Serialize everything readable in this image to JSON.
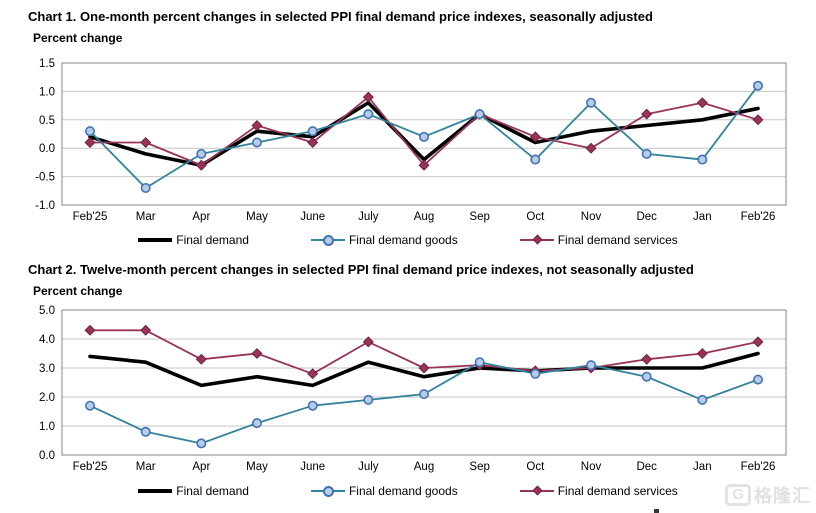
{
  "colors": {
    "final_demand_line": "#000000",
    "goods_line": "#31849B",
    "goods_marker_fill": "#B5CDE9",
    "goods_marker_edge": "#4472B0",
    "services_line": "#993357",
    "services_marker_edge": "#6E2340",
    "gridline": "#C6C6C6",
    "plot_frame": "#9A9A9A",
    "axis_text": "#000000"
  },
  "watermark": {
    "logo": "G",
    "brand": "格隆汇"
  },
  "chart_data": [
    {
      "type": "line",
      "title": "Chart 1. One-month percent changes in selected PPI final demand price indexes, seasonally adjusted",
      "ylabel": "Percent change",
      "categories": [
        "Feb'25",
        "Mar",
        "Apr",
        "May",
        "June",
        "July",
        "Aug",
        "Sep",
        "Oct",
        "Nov",
        "Dec",
        "Jan",
        "Feb'26"
      ],
      "series": [
        {
          "name": "Final demand",
          "style": "final-demand",
          "values": [
            0.2,
            -0.1,
            -0.3,
            0.3,
            0.2,
            0.8,
            -0.2,
            0.6,
            0.1,
            0.3,
            0.4,
            0.5,
            0.7
          ]
        },
        {
          "name": "Final demand goods",
          "style": "goods",
          "values": [
            0.3,
            -0.7,
            -0.1,
            0.1,
            0.3,
            0.6,
            0.2,
            0.6,
            -0.2,
            0.8,
            -0.1,
            -0.2,
            1.1
          ]
        },
        {
          "name": "Final demand services",
          "style": "services",
          "values": [
            0.1,
            0.1,
            -0.3,
            0.4,
            0.1,
            0.9,
            -0.3,
            0.6,
            0.2,
            0.0,
            0.6,
            0.8,
            0.5
          ]
        }
      ],
      "ylim": [
        -1.0,
        1.5
      ],
      "ytick_step": 0.5,
      "ytick_labels": [
        "1.5",
        "1.0",
        "0.5",
        "0.0",
        "-0.5",
        "-1.0"
      ],
      "grid": true,
      "legend_position": "bottom"
    },
    {
      "type": "line",
      "title": "Chart 2. Twelve-month percent changes in selected PPI final demand price indexes, not seasonally adjusted",
      "ylabel": "Percent change",
      "categories": [
        "Feb'25",
        "Mar",
        "Apr",
        "May",
        "June",
        "July",
        "Aug",
        "Sep",
        "Oct",
        "Nov",
        "Dec",
        "Jan",
        "Feb'26"
      ],
      "series": [
        {
          "name": "Final demand",
          "style": "final-demand",
          "values": [
            3.4,
            3.2,
            2.4,
            2.7,
            2.4,
            3.2,
            2.7,
            3.0,
            2.9,
            3.0,
            3.0,
            3.0,
            3.5
          ]
        },
        {
          "name": "Final demand goods",
          "style": "goods",
          "values": [
            1.7,
            0.8,
            0.4,
            1.1,
            1.7,
            1.9,
            2.1,
            3.2,
            2.8,
            3.1,
            2.7,
            1.9,
            2.6
          ]
        },
        {
          "name": "Final demand services",
          "style": "services",
          "values": [
            4.3,
            4.3,
            3.3,
            3.5,
            2.8,
            3.9,
            3.0,
            3.1,
            2.9,
            3.0,
            3.3,
            3.5,
            3.9
          ]
        }
      ],
      "ylim": [
        0.0,
        5.0
      ],
      "ytick_step": 1.0,
      "ytick_labels": [
        "5.0",
        "4.0",
        "3.0",
        "2.0",
        "1.0",
        "0.0"
      ],
      "grid": true,
      "legend_position": "bottom"
    }
  ]
}
